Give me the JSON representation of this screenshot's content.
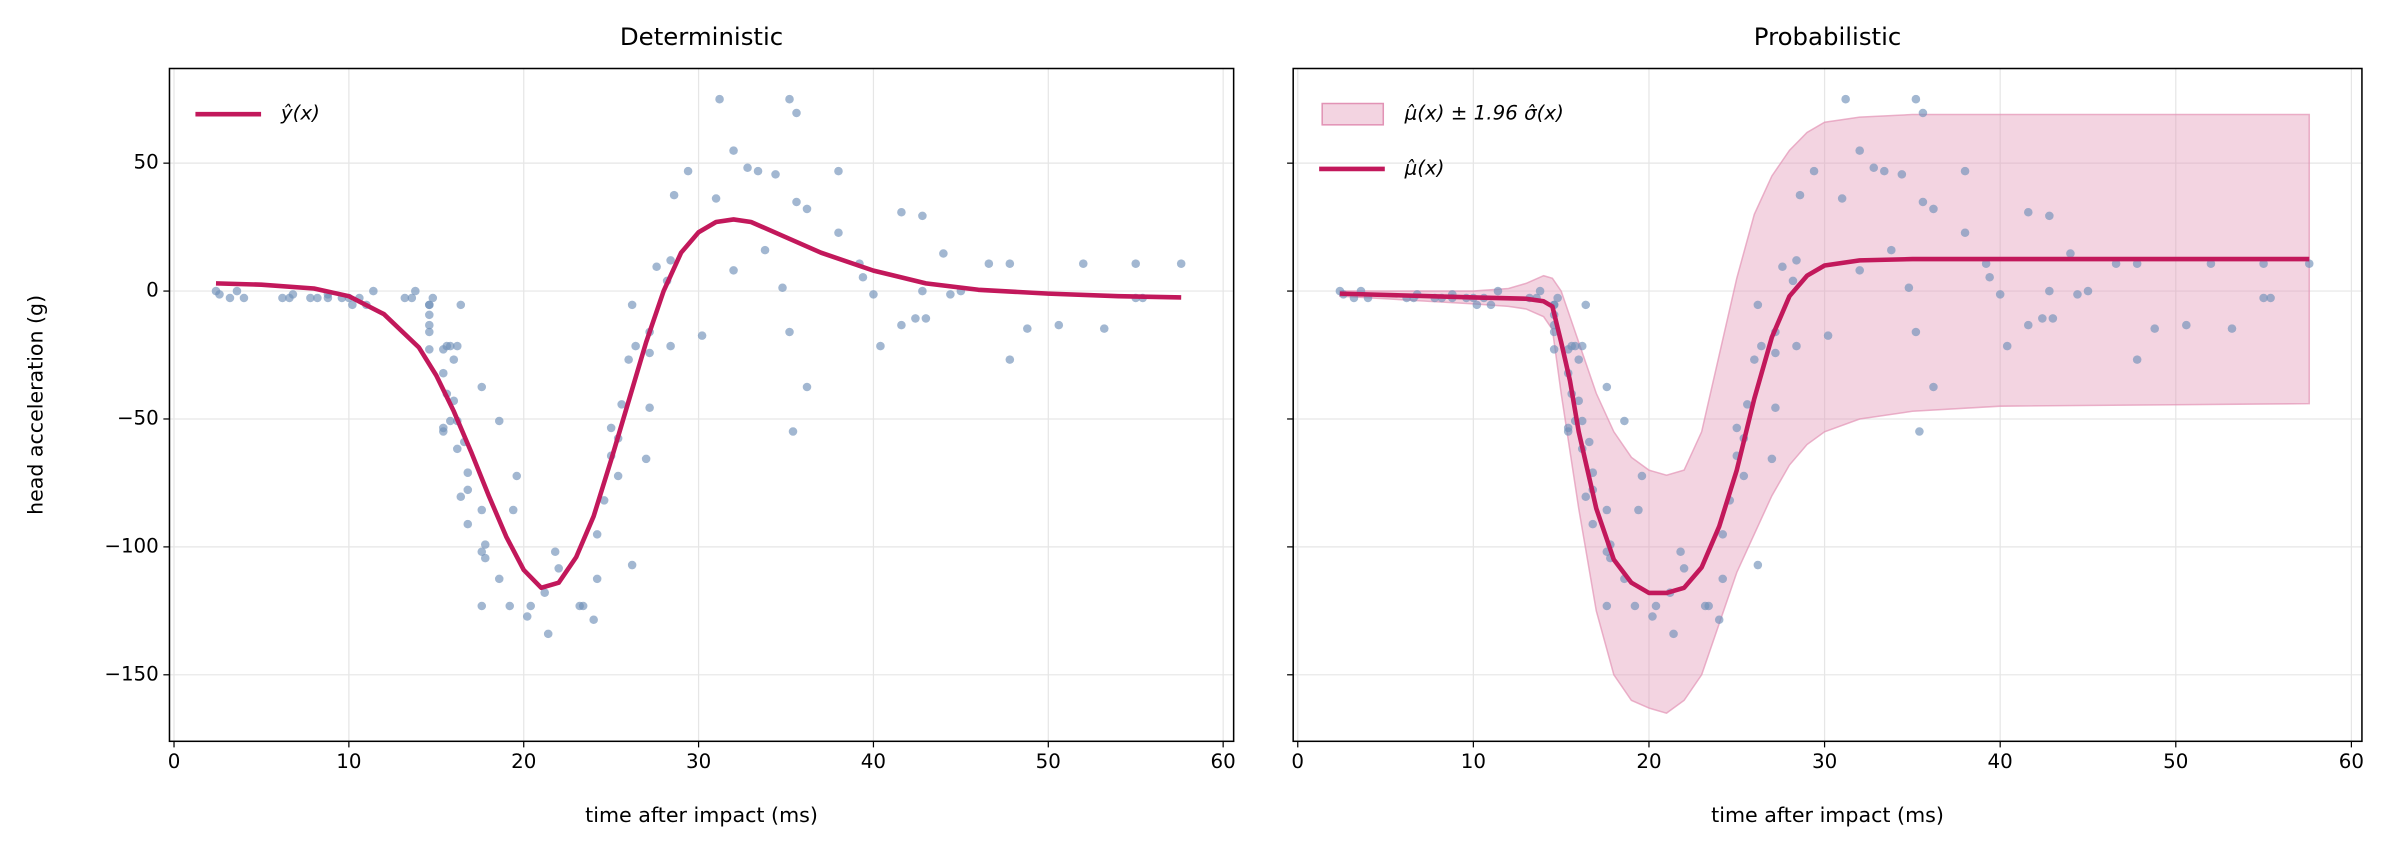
{
  "chart_data": [
    {
      "type": "line",
      "title": "Deterministic",
      "xlabel": "time after impact (ms)",
      "ylabel": "head acceleration (g)",
      "xlim": [
        -0.26,
        60.6
      ],
      "ylim": [
        -176,
        87
      ],
      "xticks": [
        0,
        10,
        20,
        30,
        40,
        50,
        60
      ],
      "yticks": [
        {
          "value": -150,
          "label": "−150"
        },
        {
          "value": -100,
          "label": "−100"
        },
        {
          "value": -50,
          "label": "−50"
        },
        0,
        50
      ],
      "grid": true,
      "legend": "upper left",
      "scatter": {
        "color": "#7090b8",
        "x": [
          2.4,
          2.6,
          3.2,
          3.6,
          4.0,
          6.2,
          6.6,
          6.8,
          7.8,
          8.2,
          8.8,
          8.8,
          9.6,
          10.0,
          10.2,
          10.6,
          11.0,
          11.4,
          13.2,
          13.6,
          13.8,
          14.6,
          14.6,
          14.6,
          14.6,
          14.6,
          14.6,
          14.8,
          15.4,
          15.4,
          15.4,
          15.4,
          15.6,
          15.6,
          15.8,
          15.8,
          16.0,
          16.0,
          16.2,
          16.2,
          16.2,
          16.4,
          16.4,
          16.6,
          16.8,
          16.8,
          16.8,
          17.6,
          17.6,
          17.6,
          17.6,
          17.8,
          17.8,
          18.6,
          18.6,
          19.2,
          19.4,
          19.6,
          20.2,
          20.4,
          21.2,
          21.4,
          21.8,
          22.0,
          23.2,
          23.4,
          24.0,
          24.2,
          24.2,
          24.6,
          25.0,
          25.0,
          25.4,
          25.4,
          25.6,
          26.0,
          26.2,
          26.2,
          26.4,
          27.0,
          27.2,
          27.2,
          27.2,
          27.6,
          28.2,
          28.4,
          28.4,
          28.6,
          29.4,
          30.2,
          31.0,
          31.2,
          32.0,
          32.0,
          32.8,
          33.4,
          33.8,
          34.4,
          34.8,
          35.2,
          35.2,
          35.4,
          35.6,
          35.6,
          36.2,
          36.2,
          38.0,
          38.0,
          39.2,
          39.4,
          40.0,
          40.4,
          41.6,
          41.6,
          42.4,
          42.8,
          42.8,
          43.0,
          44.0,
          44.4,
          45.0,
          46.6,
          47.8,
          47.8,
          48.8,
          50.6,
          52.0,
          53.2,
          55.0,
          55.0,
          55.4,
          57.6
        ],
        "y": [
          0,
          -1.3,
          -2.7,
          0,
          -2.7,
          -2.7,
          -2.7,
          -1.3,
          -2.7,
          -2.7,
          -1.3,
          -2.7,
          -2.7,
          -2.7,
          -5.4,
          -2.7,
          -5.4,
          0,
          -2.7,
          -2.7,
          0,
          -13.3,
          -5.4,
          -5.4,
          -9.3,
          -16,
          -22.8,
          -2.7,
          -22.8,
          -32.1,
          -53.5,
          -54.9,
          -40.2,
          -21.5,
          -21.5,
          -50.8,
          -42.9,
          -26.8,
          -21.5,
          -50.8,
          -61.7,
          -5.4,
          -80.4,
          -59,
          -71,
          -91.1,
          -77.7,
          -37.5,
          -85.6,
          -123.1,
          -101.9,
          -99.1,
          -104.4,
          -112.5,
          -50.8,
          -123.1,
          -85.6,
          -72.3,
          -127.2,
          -123.1,
          -117.9,
          -134,
          -101.9,
          -108.4,
          -123.1,
          -123.1,
          -128.5,
          -112.5,
          -95.1,
          -81.8,
          -53.5,
          -64.4,
          -57.6,
          -72.3,
          -44.3,
          -26.8,
          -5.4,
          -107.1,
          -21.5,
          -65.6,
          -16,
          -45.6,
          -24.2,
          9.5,
          4,
          12,
          -21.5,
          37.5,
          46.9,
          -17.4,
          36.2,
          75,
          8.1,
          54.9,
          48.2,
          46.9,
          16,
          45.6,
          1.3,
          75,
          -16,
          -54.9,
          69.6,
          34.8,
          32.1,
          -37.5,
          22.8,
          46.9,
          10.7,
          5.4,
          -1.3,
          -21.5,
          -13.3,
          30.8,
          -10.7,
          29.4,
          0,
          -10.7,
          14.7,
          -1.3,
          0,
          10.7,
          10.7,
          -26.8,
          -14.7,
          -13.3,
          10.7,
          -14.7,
          -2.7,
          10.7,
          -2.7,
          10.7
        ]
      },
      "series": [
        {
          "name": "ŷ(x)",
          "color": "#c2185b",
          "x": [
            2.4,
            5,
            8,
            10,
            12,
            14,
            15,
            16,
            17,
            18,
            19,
            20,
            21,
            22,
            23,
            24,
            25,
            26,
            27,
            28,
            29,
            30,
            31,
            32,
            33,
            35,
            37,
            40,
            43,
            46,
            50,
            54,
            57.6
          ],
          "values": [
            3,
            2.5,
            1,
            -2,
            -9,
            -22,
            -33,
            -47,
            -63,
            -80,
            -96,
            -109,
            -116,
            -114,
            -104,
            -88,
            -66,
            -43,
            -20,
            0,
            15,
            23,
            27,
            28,
            27,
            21,
            15,
            8,
            3,
            0.5,
            -1,
            -2,
            -2.5
          ]
        }
      ]
    },
    {
      "type": "band",
      "title": "Probabilistic",
      "xlabel": "time after impact (ms)",
      "xlim": [
        -0.26,
        60.6
      ],
      "ylim": [
        -176,
        87
      ],
      "xticks": [
        0,
        10,
        20,
        30,
        40,
        50,
        60
      ],
      "yticks": [
        -150,
        -100,
        -50,
        0,
        50
      ],
      "grid": true,
      "legend": "upper left",
      "scatter": {
        "color": "#7090b8",
        "x": [
          2.4,
          2.6,
          3.2,
          3.6,
          4.0,
          6.2,
          6.6,
          6.8,
          7.8,
          8.2,
          8.8,
          8.8,
          9.6,
          10.0,
          10.2,
          10.6,
          11.0,
          11.4,
          13.2,
          13.6,
          13.8,
          14.6,
          14.6,
          14.6,
          14.6,
          14.6,
          14.6,
          14.8,
          15.4,
          15.4,
          15.4,
          15.4,
          15.6,
          15.6,
          15.8,
          15.8,
          16.0,
          16.0,
          16.2,
          16.2,
          16.2,
          16.4,
          16.4,
          16.6,
          16.8,
          16.8,
          16.8,
          17.6,
          17.6,
          17.6,
          17.6,
          17.8,
          17.8,
          18.6,
          18.6,
          19.2,
          19.4,
          19.6,
          20.2,
          20.4,
          21.2,
          21.4,
          21.8,
          22.0,
          23.2,
          23.4,
          24.0,
          24.2,
          24.2,
          24.6,
          25.0,
          25.0,
          25.4,
          25.4,
          25.6,
          26.0,
          26.2,
          26.2,
          26.4,
          27.0,
          27.2,
          27.2,
          27.2,
          27.6,
          28.2,
          28.4,
          28.4,
          28.6,
          29.4,
          30.2,
          31.0,
          31.2,
          32.0,
          32.0,
          32.8,
          33.4,
          33.8,
          34.4,
          34.8,
          35.2,
          35.2,
          35.4,
          35.6,
          35.6,
          36.2,
          36.2,
          38.0,
          38.0,
          39.2,
          39.4,
          40.0,
          40.4,
          41.6,
          41.6,
          42.4,
          42.8,
          42.8,
          43.0,
          44.0,
          44.4,
          45.0,
          46.6,
          47.8,
          47.8,
          48.8,
          50.6,
          52.0,
          53.2,
          55.0,
          55.0,
          55.4,
          57.6
        ],
        "y": [
          0,
          -1.3,
          -2.7,
          0,
          -2.7,
          -2.7,
          -2.7,
          -1.3,
          -2.7,
          -2.7,
          -1.3,
          -2.7,
          -2.7,
          -2.7,
          -5.4,
          -2.7,
          -5.4,
          0,
          -2.7,
          -2.7,
          0,
          -13.3,
          -5.4,
          -5.4,
          -9.3,
          -16,
          -22.8,
          -2.7,
          -22.8,
          -32.1,
          -53.5,
          -54.9,
          -40.2,
          -21.5,
          -21.5,
          -50.8,
          -42.9,
          -26.8,
          -21.5,
          -50.8,
          -61.7,
          -5.4,
          -80.4,
          -59,
          -71,
          -91.1,
          -77.7,
          -37.5,
          -85.6,
          -123.1,
          -101.9,
          -99.1,
          -104.4,
          -112.5,
          -50.8,
          -123.1,
          -85.6,
          -72.3,
          -127.2,
          -123.1,
          -117.9,
          -134,
          -101.9,
          -108.4,
          -123.1,
          -123.1,
          -128.5,
          -112.5,
          -95.1,
          -81.8,
          -53.5,
          -64.4,
          -57.6,
          -72.3,
          -44.3,
          -26.8,
          -5.4,
          -107.1,
          -21.5,
          -65.6,
          -16,
          -45.6,
          -24.2,
          9.5,
          4,
          12,
          -21.5,
          37.5,
          46.9,
          -17.4,
          36.2,
          75,
          8.1,
          54.9,
          48.2,
          46.9,
          16,
          45.6,
          1.3,
          75,
          -16,
          -54.9,
          69.6,
          34.8,
          32.1,
          -37.5,
          22.8,
          46.9,
          10.7,
          5.4,
          -1.3,
          -21.5,
          -13.3,
          30.8,
          -10.7,
          29.4,
          0,
          -10.7,
          14.7,
          -1.3,
          0,
          10.7,
          10.7,
          -26.8,
          -14.7,
          -13.3,
          10.7,
          -14.7,
          -2.7,
          10.7,
          -2.7,
          10.7
        ]
      },
      "band": {
        "name": "μ̂(x) ± 1.96 σ̂(x)",
        "color": "#e293b5",
        "x": [
          2.4,
          10,
          12,
          13,
          14,
          14.5,
          15,
          16,
          17,
          18,
          19,
          20,
          21,
          22,
          23,
          24,
          25,
          26,
          27,
          28,
          29,
          30,
          32,
          35,
          40,
          57.6
        ],
        "upper": [
          0,
          0,
          1,
          3,
          6,
          5,
          0,
          -20,
          -40,
          -55,
          -65,
          -70,
          -72,
          -70,
          -55,
          -25,
          5,
          30,
          45,
          55,
          62,
          66,
          68,
          69,
          69,
          69
        ],
        "lower": [
          -2,
          -5,
          -6,
          -7,
          -10,
          -15,
          -40,
          -85,
          -125,
          -150,
          -160,
          -163,
          -165,
          -160,
          -150,
          -130,
          -110,
          -95,
          -80,
          -68,
          -60,
          -55,
          -50,
          -47,
          -45,
          -44
        ]
      },
      "series": [
        {
          "name": "μ̂(x)",
          "color": "#c2185b",
          "x": [
            2.4,
            10,
            13,
            14,
            14.5,
            15,
            15.5,
            16,
            17,
            18,
            19,
            20,
            21,
            22,
            23,
            24,
            25,
            26,
            27,
            28,
            29,
            30,
            32,
            35,
            40,
            50,
            57.6
          ],
          "values": [
            -1,
            -2.5,
            -3,
            -4,
            -6,
            -20,
            -35,
            -55,
            -85,
            -105,
            -114,
            -118,
            -118,
            -116,
            -108,
            -92,
            -70,
            -42,
            -18,
            -2,
            6,
            10,
            12,
            12.5,
            12.5,
            12.5,
            12.5
          ]
        }
      ]
    }
  ]
}
